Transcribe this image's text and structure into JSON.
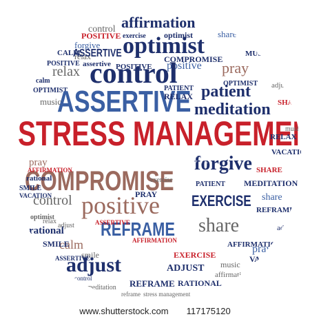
{
  "colors": {
    "red": "#c8202a",
    "navy": "#1e2f6c",
    "blue": "#3a5fa3",
    "brown": "#9b6a5e",
    "gray": "#666666",
    "darkgray": "#3b3b3b",
    "lightblue": "#8aa5c8",
    "white": "#ffffff",
    "text": "#222222"
  },
  "words": [
    {
      "text": "meditation",
      "color": "gray"
    },
    {
      "text": "reframe",
      "color": "red"
    },
    {
      "text": "affirmation",
      "color": "navy"
    },
    {
      "text": "exercise",
      "color": "navy"
    },
    {
      "text": "optimist",
      "color": "navy"
    },
    {
      "text": "POSITIVE",
      "color": "red"
    },
    {
      "text": "share",
      "color": "blue"
    },
    {
      "text": "control",
      "color": "gray"
    },
    {
      "text": "forgive",
      "color": "blue"
    },
    {
      "text": "relax",
      "color": "gray"
    },
    {
      "text": "assertive",
      "color": "navy"
    },
    {
      "text": "optimist",
      "color": "navy"
    },
    {
      "text": "CALM",
      "color": "navy"
    },
    {
      "text": "ASSERTIVE",
      "color": "navy"
    },
    {
      "text": "COMPROMISE",
      "color": "navy"
    },
    {
      "text": "MUSIC",
      "color": "navy"
    },
    {
      "text": "POSITIVE",
      "color": "navy"
    },
    {
      "text": "positive",
      "color": "blue"
    },
    {
      "text": "relax",
      "color": "gray"
    },
    {
      "text": "control",
      "color": "navy"
    },
    {
      "text": "pray",
      "color": "brown"
    },
    {
      "text": "calm",
      "color": "navy"
    },
    {
      "text": "OPTIMIST",
      "color": "navy"
    },
    {
      "text": "ASSERTIVE",
      "color": "blue"
    },
    {
      "text": "patient",
      "color": "navy"
    },
    {
      "text": "music",
      "color": "gray"
    },
    {
      "text": "PATIENT",
      "color": "navy"
    },
    {
      "text": "RELAX",
      "color": "navy"
    },
    {
      "text": "meditation",
      "color": "navy"
    },
    {
      "text": "SHARE",
      "color": "red"
    },
    {
      "text": "adjust",
      "color": "gray"
    },
    {
      "text": "STRESS MANAGEMENT",
      "color": "red"
    },
    {
      "text": "pray",
      "color": "brown"
    },
    {
      "text": "COMPROMISE",
      "color": "brown"
    },
    {
      "text": "forgive",
      "color": "navy"
    },
    {
      "text": "AFFIRMATION",
      "color": "red"
    },
    {
      "text": "rational",
      "color": "navy"
    },
    {
      "text": "SMILE",
      "color": "navy"
    },
    {
      "text": "VACATION",
      "color": "navy"
    },
    {
      "text": "PATIENT",
      "color": "navy"
    },
    {
      "text": "MEDITATION",
      "color": "navy"
    },
    {
      "text": "control",
      "color": "gray"
    },
    {
      "text": "positive",
      "color": "brown"
    },
    {
      "text": "EXERCISE",
      "color": "navy"
    },
    {
      "text": "share",
      "color": "blue"
    },
    {
      "text": "REFRAME",
      "color": "navy"
    },
    {
      "text": "optimist",
      "color": "gray"
    },
    {
      "text": "rational",
      "color": "navy"
    },
    {
      "text": "REFRAME",
      "color": "blue"
    },
    {
      "text": "share",
      "color": "gray"
    },
    {
      "text": "calm",
      "color": "brown"
    },
    {
      "text": "smile",
      "color": "gray"
    },
    {
      "text": "AFFIRMATION",
      "color": "navy"
    },
    {
      "text": "pray",
      "color": "blue"
    },
    {
      "text": "adjust",
      "color": "navy"
    },
    {
      "text": "EXERCISE",
      "color": "red"
    },
    {
      "text": "ADJUST",
      "color": "navy"
    },
    {
      "text": "VACATION",
      "color": "navy"
    },
    {
      "text": "control",
      "color": "navy"
    },
    {
      "text": "REFRAME",
      "color": "navy"
    },
    {
      "text": "RATIONAL",
      "color": "navy"
    },
    {
      "text": "affirmation",
      "color": "gray"
    },
    {
      "text": "music",
      "color": "gray"
    },
    {
      "text": "meditation",
      "color": "gray"
    },
    {
      "text": "reframe",
      "color": "gray"
    },
    {
      "text": "stress management",
      "color": "gray"
    },
    {
      "text": "ASSERTIVE",
      "color": "red"
    },
    {
      "text": "AFFIRMATION",
      "color": "red"
    },
    {
      "text": "ASSERTIVE",
      "color": "navy"
    },
    {
      "text": "SMILE",
      "color": "navy"
    },
    {
      "text": "PRAY",
      "color": "navy"
    },
    {
      "text": "relax",
      "color": "gray"
    },
    {
      "text": "exercise",
      "color": "gray"
    },
    {
      "text": "adjust",
      "color": "gray"
    },
    {
      "text": "SHARE",
      "color": "red"
    },
    {
      "text": "music",
      "color": "gray"
    },
    {
      "text": "VACATION",
      "color": "navy"
    },
    {
      "text": "adjust",
      "color": "navy"
    },
    {
      "text": "RELAX",
      "color": "navy"
    },
    {
      "text": "OPTIMIST",
      "color": "navy"
    },
    {
      "text": "POSITIVE",
      "color": "navy"
    },
    {
      "text": "CALM",
      "color": "navy"
    }
  ],
  "watermark": "shutterstock",
  "footer": {
    "site": "www.shutterstock.com",
    "id": "117175120"
  }
}
